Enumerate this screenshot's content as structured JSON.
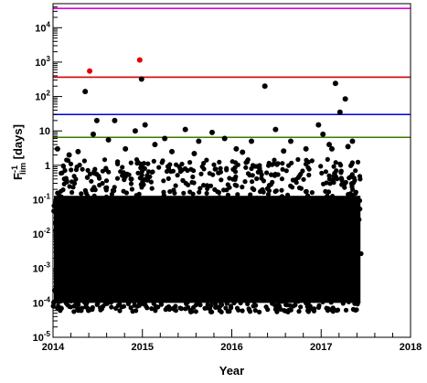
{
  "chart_data": {
    "type": "scatter",
    "title": "",
    "xlabel": "Year",
    "ylabel": "F",
    "ylabel_superscript": "-1",
    "ylabel_subscript": "lim",
    "ylabel_suffix": " [days]",
    "xlim": [
      2014,
      2018
    ],
    "ylim": [
      1e-05,
      50000
    ],
    "yscale": "log",
    "grid": false,
    "legend": "none",
    "x_ticks": [
      {
        "value": 2014,
        "label": "2014"
      },
      {
        "value": 2015,
        "label": "2015"
      },
      {
        "value": 2016,
        "label": "2016"
      },
      {
        "value": 2017,
        "label": "2017"
      },
      {
        "value": 2018,
        "label": "2018"
      }
    ],
    "y_ticks": [
      {
        "value": 1e-05,
        "base": "10",
        "exp": "-5"
      },
      {
        "value": 0.0001,
        "base": "10",
        "exp": "-4"
      },
      {
        "value": 0.001,
        "base": "10",
        "exp": "-3"
      },
      {
        "value": 0.01,
        "base": "10",
        "exp": "-2"
      },
      {
        "value": 0.1,
        "base": "10",
        "exp": "-1"
      },
      {
        "value": 1,
        "base": "1",
        "exp": ""
      },
      {
        "value": 10,
        "base": "10",
        "exp": ""
      },
      {
        "value": 100,
        "base": "10",
        "exp": "2"
      },
      {
        "value": 1000,
        "base": "10",
        "exp": "3"
      },
      {
        "value": 10000,
        "base": "10",
        "exp": "4"
      }
    ],
    "threshold_lines": [
      {
        "y": 36500,
        "color": "#e000e0"
      },
      {
        "y": 365,
        "color": "#d40000"
      },
      {
        "y": 30,
        "color": "#0000dd"
      },
      {
        "y": 6.5,
        "color": "#3a7a00"
      }
    ],
    "dense_band": {
      "x_range": [
        2014.0,
        2017.45
      ],
      "y_range": [
        0.0001,
        1.5
      ],
      "color": "#000000"
    },
    "series": [
      {
        "color": "#000000",
        "x": [
          2014.36,
          2014.49,
          2014.69,
          2014.45,
          2014.62,
          2014.92,
          2014.99,
          2015.03,
          2015.25,
          2015.48,
          2015.63,
          2015.78,
          2015.92,
          2016.22,
          2016.37,
          2016.49,
          2016.66,
          2016.97,
          2017.16,
          2017.27,
          2017.21,
          2017.02,
          2017.35,
          2014.05,
          2014.81,
          2015.14,
          2016.05,
          2016.83,
          2017.09,
          2014.18,
          2014.28,
          2015.33,
          2015.58,
          2016.12,
          2016.58,
          2017.12,
          2017.3
        ],
        "y": [
          140,
          20,
          20,
          8,
          5.5,
          10,
          320,
          15,
          6,
          11,
          5,
          9,
          6,
          5,
          200,
          11,
          5,
          15,
          240,
          85,
          35,
          8,
          5,
          3,
          3,
          4,
          3,
          3,
          4,
          2,
          2.5,
          2.5,
          2.2,
          2.4,
          2.6,
          3,
          3.5
        ]
      },
      {
        "color": "#e00000",
        "x": [
          2014.41,
          2014.97
        ],
        "y": [
          550,
          1150
        ]
      }
    ]
  }
}
